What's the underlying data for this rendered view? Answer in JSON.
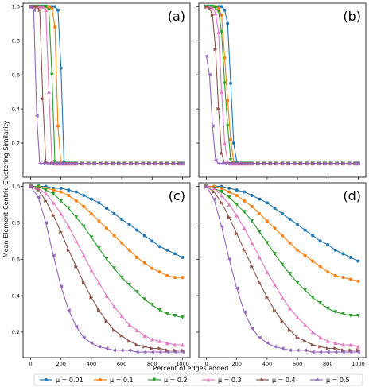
{
  "figure": {
    "ylabel": "Mean Element-Centric Clustering Similarity",
    "xlabel": "Percent of edges added"
  },
  "chart_data": [
    {
      "panel": "(a)",
      "type": "line",
      "xlim": [
        -50,
        1050
      ],
      "ylim": [
        0.0,
        1.02
      ],
      "xticks": [
        0,
        200,
        400,
        600,
        800,
        1000
      ],
      "yticks": [
        0.2,
        0.4,
        0.6,
        0.8,
        1.0
      ],
      "x": [
        0,
        20,
        40,
        60,
        80,
        100,
        120,
        140,
        160,
        180,
        200,
        220,
        240,
        260,
        280,
        300,
        340,
        380,
        420,
        460,
        500,
        540,
        580,
        620,
        660,
        700,
        740,
        780,
        820,
        860,
        900,
        940,
        980,
        1000
      ],
      "series": [
        {
          "name": "μ = 0.01",
          "color": "#1f77b4",
          "marker": "circle",
          "values": [
            1,
            1,
            1,
            1,
            1,
            1,
            1,
            1,
            1,
            0.98,
            0.64,
            0.09,
            0.08,
            0.08,
            0.08,
            0.08,
            0.08,
            0.08,
            0.08,
            0.08,
            0.08,
            0.08,
            0.08,
            0.08,
            0.08,
            0.08,
            0.08,
            0.08,
            0.08,
            0.08,
            0.08,
            0.08,
            0.08,
            0.08
          ]
        },
        {
          "name": "μ = 0.1",
          "color": "#ff7f0e",
          "marker": "circle",
          "values": [
            1,
            1,
            1,
            1,
            1,
            1,
            1,
            0.99,
            0.88,
            0.3,
            0.08,
            0.08,
            0.08,
            0.08,
            0.08,
            0.08,
            0.08,
            0.08,
            0.08,
            0.08,
            0.08,
            0.08,
            0.08,
            0.08,
            0.08,
            0.08,
            0.08,
            0.08,
            0.08,
            0.08,
            0.08,
            0.08,
            0.08,
            0.08
          ]
        },
        {
          "name": "μ = 0.2",
          "color": "#2ca02c",
          "marker": "tri-down",
          "values": [
            1,
            1,
            1,
            1,
            1,
            1,
            0.98,
            0.6,
            0.09,
            0.08,
            0.08,
            0.08,
            0.08,
            0.08,
            0.08,
            0.08,
            0.08,
            0.08,
            0.08,
            0.08,
            0.08,
            0.08,
            0.08,
            0.08,
            0.08,
            0.08,
            0.08,
            0.08,
            0.08,
            0.08,
            0.08,
            0.08,
            0.08,
            0.08
          ]
        },
        {
          "name": "μ = 0.3",
          "color": "#e377c2",
          "marker": "tri-up",
          "values": [
            1,
            1,
            1,
            1,
            1,
            0.98,
            0.5,
            0.09,
            0.08,
            0.08,
            0.08,
            0.08,
            0.08,
            0.08,
            0.08,
            0.08,
            0.08,
            0.08,
            0.08,
            0.08,
            0.08,
            0.08,
            0.08,
            0.08,
            0.08,
            0.08,
            0.08,
            0.08,
            0.08,
            0.08,
            0.08,
            0.08,
            0.08,
            0.08
          ]
        },
        {
          "name": "μ = 0.4",
          "color": "#8c564b",
          "marker": "tri-right",
          "values": [
            1,
            1,
            1,
            0.98,
            0.46,
            0.09,
            0.08,
            0.08,
            0.08,
            0.08,
            0.08,
            0.08,
            0.08,
            0.08,
            0.08,
            0.08,
            0.08,
            0.08,
            0.08,
            0.08,
            0.08,
            0.08,
            0.08,
            0.08,
            0.08,
            0.08,
            0.08,
            0.08,
            0.08,
            0.08,
            0.08,
            0.08,
            0.08,
            0.08
          ]
        },
        {
          "name": "μ = 0.5",
          "color": "#9467bd",
          "marker": "tri-left",
          "values": [
            1,
            0.98,
            0.36,
            0.08,
            0.08,
            0.08,
            0.08,
            0.08,
            0.08,
            0.08,
            0.08,
            0.08,
            0.08,
            0.08,
            0.08,
            0.08,
            0.08,
            0.08,
            0.08,
            0.08,
            0.08,
            0.08,
            0.08,
            0.08,
            0.08,
            0.08,
            0.08,
            0.08,
            0.08,
            0.08,
            0.08,
            0.08,
            0.08,
            0.08
          ]
        }
      ]
    },
    {
      "panel": "(b)",
      "type": "line",
      "xlim": [
        -50,
        1050
      ],
      "ylim": [
        0.0,
        1.02
      ],
      "xticks": [
        0,
        200,
        400,
        600,
        800,
        1000
      ],
      "yticks": [
        0.2,
        0.4,
        0.6,
        0.8,
        1.0
      ],
      "x": [
        0,
        20,
        40,
        60,
        80,
        100,
        120,
        140,
        160,
        180,
        200,
        220,
        240,
        260,
        280,
        300,
        340,
        380,
        420,
        460,
        500,
        540,
        580,
        620,
        660,
        700,
        740,
        780,
        820,
        860,
        900,
        940,
        980,
        1000
      ],
      "series": [
        {
          "name": "μ = 0.01",
          "color": "#1f77b4",
          "marker": "circle",
          "values": [
            1,
            1,
            1,
            1,
            1,
            1,
            0.98,
            0.9,
            0.55,
            0.2,
            0.09,
            0.08,
            0.08,
            0.08,
            0.08,
            0.08,
            0.08,
            0.08,
            0.08,
            0.08,
            0.08,
            0.08,
            0.08,
            0.08,
            0.08,
            0.08,
            0.08,
            0.08,
            0.08,
            0.08,
            0.08,
            0.08,
            0.08,
            0.08
          ]
        },
        {
          "name": "μ = 0.1",
          "color": "#ff7f0e",
          "marker": "circle",
          "values": [
            1,
            1,
            1,
            1,
            0.99,
            0.95,
            0.7,
            0.45,
            0.22,
            0.09,
            0.08,
            0.08,
            0.08,
            0.08,
            0.08,
            0.08,
            0.08,
            0.08,
            0.08,
            0.08,
            0.08,
            0.08,
            0.08,
            0.08,
            0.08,
            0.08,
            0.08,
            0.08,
            0.08,
            0.08,
            0.08,
            0.08,
            0.08,
            0.08
          ]
        },
        {
          "name": "μ = 0.2",
          "color": "#2ca02c",
          "marker": "tri-down",
          "values": [
            1,
            1,
            1,
            0.99,
            0.97,
            0.85,
            0.55,
            0.3,
            0.1,
            0.08,
            0.08,
            0.08,
            0.08,
            0.08,
            0.08,
            0.08,
            0.08,
            0.08,
            0.08,
            0.08,
            0.08,
            0.08,
            0.08,
            0.08,
            0.08,
            0.08,
            0.08,
            0.08,
            0.08,
            0.08,
            0.08,
            0.08,
            0.08,
            0.08
          ]
        },
        {
          "name": "μ = 0.3",
          "color": "#e377c2",
          "marker": "tri-up",
          "values": [
            1,
            1,
            0.99,
            0.96,
            0.85,
            0.5,
            0.2,
            0.09,
            0.08,
            0.08,
            0.08,
            0.08,
            0.08,
            0.08,
            0.08,
            0.08,
            0.08,
            0.08,
            0.08,
            0.08,
            0.08,
            0.08,
            0.08,
            0.08,
            0.08,
            0.08,
            0.08,
            0.08,
            0.08,
            0.08,
            0.08,
            0.08,
            0.08,
            0.08
          ]
        },
        {
          "name": "μ = 0.4",
          "color": "#8c564b",
          "marker": "tri-right",
          "values": [
            1,
            0.99,
            0.95,
            0.75,
            0.4,
            0.14,
            0.08,
            0.08,
            0.08,
            0.08,
            0.08,
            0.08,
            0.08,
            0.08,
            0.08,
            0.08,
            0.08,
            0.08,
            0.08,
            0.08,
            0.08,
            0.08,
            0.08,
            0.08,
            0.08,
            0.08,
            0.08,
            0.08,
            0.08,
            0.08,
            0.08,
            0.08,
            0.08,
            0.08
          ]
        },
        {
          "name": "μ = 0.5",
          "color": "#9467bd",
          "marker": "tri-left",
          "values": [
            0.71,
            0.6,
            0.3,
            0.1,
            0.08,
            0.08,
            0.08,
            0.08,
            0.08,
            0.08,
            0.08,
            0.08,
            0.08,
            0.08,
            0.08,
            0.08,
            0.08,
            0.08,
            0.08,
            0.08,
            0.08,
            0.08,
            0.08,
            0.08,
            0.08,
            0.08,
            0.08,
            0.08,
            0.08,
            0.08,
            0.08,
            0.08,
            0.08,
            0.08
          ]
        }
      ]
    },
    {
      "panel": "(c)",
      "type": "line",
      "xlim": [
        -50,
        1050
      ],
      "ylim": [
        0.06,
        1.02
      ],
      "xticks": [
        0,
        200,
        400,
        600,
        800,
        1000
      ],
      "yticks": [
        0.2,
        0.4,
        0.6,
        0.8,
        1.0
      ],
      "x": [
        0,
        50,
        100,
        150,
        200,
        250,
        300,
        350,
        400,
        450,
        500,
        550,
        600,
        650,
        700,
        750,
        800,
        850,
        900,
        950,
        1000
      ],
      "series": [
        {
          "name": "μ = 0.01",
          "color": "#1f77b4",
          "marker": "circle",
          "values": [
            1.0,
            1.0,
            1.0,
            0.99,
            0.99,
            0.98,
            0.97,
            0.95,
            0.93,
            0.91,
            0.88,
            0.85,
            0.82,
            0.79,
            0.76,
            0.73,
            0.7,
            0.67,
            0.65,
            0.63,
            0.61
          ]
        },
        {
          "name": "μ = 0.1",
          "color": "#ff7f0e",
          "marker": "circle",
          "values": [
            1.0,
            1.0,
            0.99,
            0.98,
            0.97,
            0.95,
            0.92,
            0.89,
            0.85,
            0.81,
            0.77,
            0.73,
            0.69,
            0.65,
            0.61,
            0.58,
            0.55,
            0.53,
            0.51,
            0.5,
            0.5
          ]
        },
        {
          "name": "μ = 0.2",
          "color": "#2ca02c",
          "marker": "tri-down",
          "values": [
            1.0,
            1.0,
            0.98,
            0.96,
            0.92,
            0.88,
            0.83,
            0.78,
            0.72,
            0.66,
            0.6,
            0.55,
            0.5,
            0.46,
            0.42,
            0.38,
            0.35,
            0.32,
            0.3,
            0.29,
            0.28
          ]
        },
        {
          "name": "μ = 0.3",
          "color": "#e377c2",
          "marker": "tri-up",
          "values": [
            1.0,
            0.99,
            0.96,
            0.91,
            0.85,
            0.78,
            0.7,
            0.62,
            0.54,
            0.47,
            0.4,
            0.34,
            0.29,
            0.24,
            0.21,
            0.18,
            0.16,
            0.15,
            0.14,
            0.13,
            0.13
          ]
        },
        {
          "name": "μ = 0.4",
          "color": "#8c564b",
          "marker": "tri-right",
          "values": [
            1.0,
            0.98,
            0.92,
            0.84,
            0.75,
            0.65,
            0.56,
            0.47,
            0.39,
            0.32,
            0.26,
            0.21,
            0.18,
            0.15,
            0.13,
            0.12,
            0.11,
            0.11,
            0.1,
            0.1,
            0.1
          ]
        },
        {
          "name": "μ = 0.5",
          "color": "#9467bd",
          "marker": "tri-left",
          "values": [
            1.0,
            0.94,
            0.8,
            0.62,
            0.45,
            0.32,
            0.23,
            0.17,
            0.14,
            0.12,
            0.11,
            0.1,
            0.1,
            0.1,
            0.09,
            0.09,
            0.09,
            0.09,
            0.09,
            0.09,
            0.09
          ]
        }
      ]
    },
    {
      "panel": "(d)",
      "type": "line",
      "xlim": [
        -50,
        1050
      ],
      "ylim": [
        0.06,
        1.02
      ],
      "xticks": [
        0,
        200,
        400,
        600,
        800,
        1000
      ],
      "yticks": [
        0.2,
        0.4,
        0.6,
        0.8,
        1.0
      ],
      "x": [
        0,
        50,
        100,
        150,
        200,
        250,
        300,
        350,
        400,
        450,
        500,
        550,
        600,
        650,
        700,
        750,
        800,
        850,
        900,
        950,
        1000
      ],
      "series": [
        {
          "name": "μ = 0.01",
          "color": "#1f77b4",
          "marker": "circle",
          "values": [
            1.0,
            1.0,
            1.0,
            0.99,
            0.98,
            0.97,
            0.95,
            0.93,
            0.91,
            0.88,
            0.85,
            0.82,
            0.79,
            0.76,
            0.73,
            0.7,
            0.68,
            0.65,
            0.63,
            0.61,
            0.59
          ]
        },
        {
          "name": "μ = 0.1",
          "color": "#ff7f0e",
          "marker": "circle",
          "values": [
            1.0,
            1.0,
            0.99,
            0.97,
            0.95,
            0.92,
            0.89,
            0.85,
            0.81,
            0.77,
            0.73,
            0.69,
            0.65,
            0.62,
            0.59,
            0.56,
            0.53,
            0.51,
            0.5,
            0.49,
            0.48
          ]
        },
        {
          "name": "μ = 0.2",
          "color": "#2ca02c",
          "marker": "tri-down",
          "values": [
            1.0,
            0.99,
            0.97,
            0.94,
            0.9,
            0.86,
            0.81,
            0.75,
            0.69,
            0.63,
            0.57,
            0.52,
            0.47,
            0.43,
            0.39,
            0.36,
            0.33,
            0.31,
            0.3,
            0.29,
            0.29
          ]
        },
        {
          "name": "μ = 0.3",
          "color": "#e377c2",
          "marker": "tri-up",
          "values": [
            1.0,
            0.99,
            0.95,
            0.9,
            0.84,
            0.77,
            0.69,
            0.61,
            0.53,
            0.46,
            0.39,
            0.33,
            0.28,
            0.24,
            0.2,
            0.17,
            0.15,
            0.14,
            0.13,
            0.13,
            0.12
          ]
        },
        {
          "name": "μ = 0.4",
          "color": "#8c564b",
          "marker": "tri-right",
          "values": [
            1.0,
            0.97,
            0.91,
            0.83,
            0.74,
            0.65,
            0.56,
            0.47,
            0.39,
            0.32,
            0.26,
            0.21,
            0.17,
            0.15,
            0.13,
            0.12,
            0.11,
            0.11,
            0.1,
            0.1,
            0.1
          ]
        },
        {
          "name": "μ = 0.5",
          "color": "#9467bd",
          "marker": "tri-left",
          "values": [
            1.0,
            0.93,
            0.78,
            0.6,
            0.44,
            0.31,
            0.22,
            0.17,
            0.14,
            0.12,
            0.11,
            0.1,
            0.1,
            0.1,
            0.09,
            0.09,
            0.09,
            0.09,
            0.09,
            0.09,
            0.09
          ]
        }
      ]
    }
  ]
}
